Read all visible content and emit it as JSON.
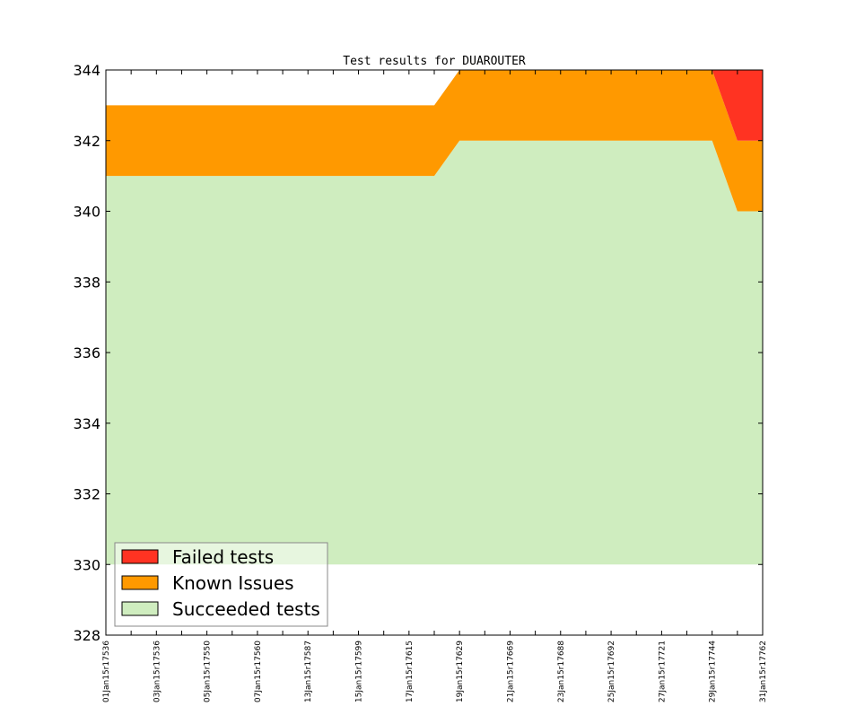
{
  "chart_data": {
    "type": "area",
    "title": "Test results for DUAROUTER",
    "xlabel": "",
    "ylabel": "",
    "ylim": [
      328,
      344
    ],
    "yticks": [
      328,
      330,
      332,
      334,
      336,
      338,
      340,
      342,
      344
    ],
    "x_tick_labels": [
      "01Jan15r17536",
      "03Jan15r17536",
      "05Jan15r17550",
      "07Jan15r17560",
      "13Jan15r17587",
      "15Jan15r17599",
      "17Jan15r17615",
      "19Jan15r17629",
      "21Jan15r17669",
      "23Jan15r17688",
      "25Jan15r17692",
      "27Jan15r17721",
      "29Jan15r17744",
      "31Jan15r17762"
    ],
    "x_count": 27,
    "stacked": true,
    "baseline": 330,
    "series": [
      {
        "name": "Succeeded tests",
        "color": "#cfedbf",
        "top": [
          341,
          341,
          341,
          341,
          341,
          341,
          341,
          341,
          341,
          341,
          341,
          341,
          341,
          341,
          342,
          342,
          342,
          342,
          342,
          342,
          342,
          342,
          342,
          342,
          342,
          340,
          340
        ]
      },
      {
        "name": "Known Issues",
        "color": "#ff9900",
        "top": [
          343,
          343,
          343,
          343,
          343,
          343,
          343,
          343,
          343,
          343,
          343,
          343,
          343,
          343,
          344,
          344,
          344,
          344,
          344,
          344,
          344,
          344,
          344,
          344,
          344,
          342,
          342
        ]
      },
      {
        "name": "Failed tests",
        "color": "#ff3322",
        "top": [
          343,
          343,
          343,
          343,
          343,
          343,
          343,
          343,
          343,
          343,
          343,
          343,
          343,
          343,
          344,
          344,
          344,
          344,
          344,
          344,
          344,
          344,
          344,
          344,
          344,
          344,
          344
        ]
      }
    ],
    "legend": {
      "position": "lower-left",
      "entries": [
        "Failed tests",
        "Known Issues",
        "Succeeded tests"
      ]
    },
    "grid": false
  }
}
